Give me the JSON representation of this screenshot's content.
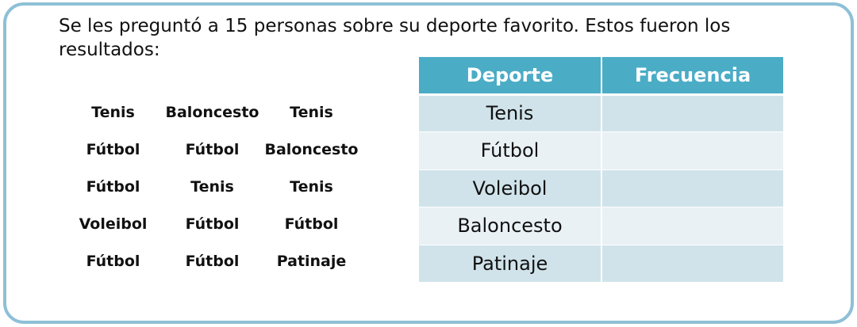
{
  "prompt": "Se les preguntó a 15 personas sobre su deporte favorito. Estos fueron los resultados:",
  "responses": [
    [
      "Tenis",
      "Baloncesto",
      "Tenis"
    ],
    [
      "Fútbol",
      "Fútbol",
      "Baloncesto"
    ],
    [
      "Fútbol",
      "Tenis",
      "Tenis"
    ],
    [
      "Voleibol",
      "Fútbol",
      "Fútbol"
    ],
    [
      "Fútbol",
      "Fútbol",
      "Patinaje"
    ]
  ],
  "table": {
    "headers": [
      "Deporte",
      "Frecuencia"
    ],
    "rows": [
      {
        "sport": "Tenis",
        "frequency": ""
      },
      {
        "sport": "Fútbol",
        "frequency": ""
      },
      {
        "sport": "Voleibol",
        "frequency": ""
      },
      {
        "sport": "Baloncesto",
        "frequency": ""
      },
      {
        "sport": "Patinaje",
        "frequency": ""
      }
    ]
  },
  "colors": {
    "border": "#8ec0d6",
    "header_bg": "#4bacc6",
    "row_dark": "#d0e3ea",
    "row_light": "#e9f1f5"
  }
}
